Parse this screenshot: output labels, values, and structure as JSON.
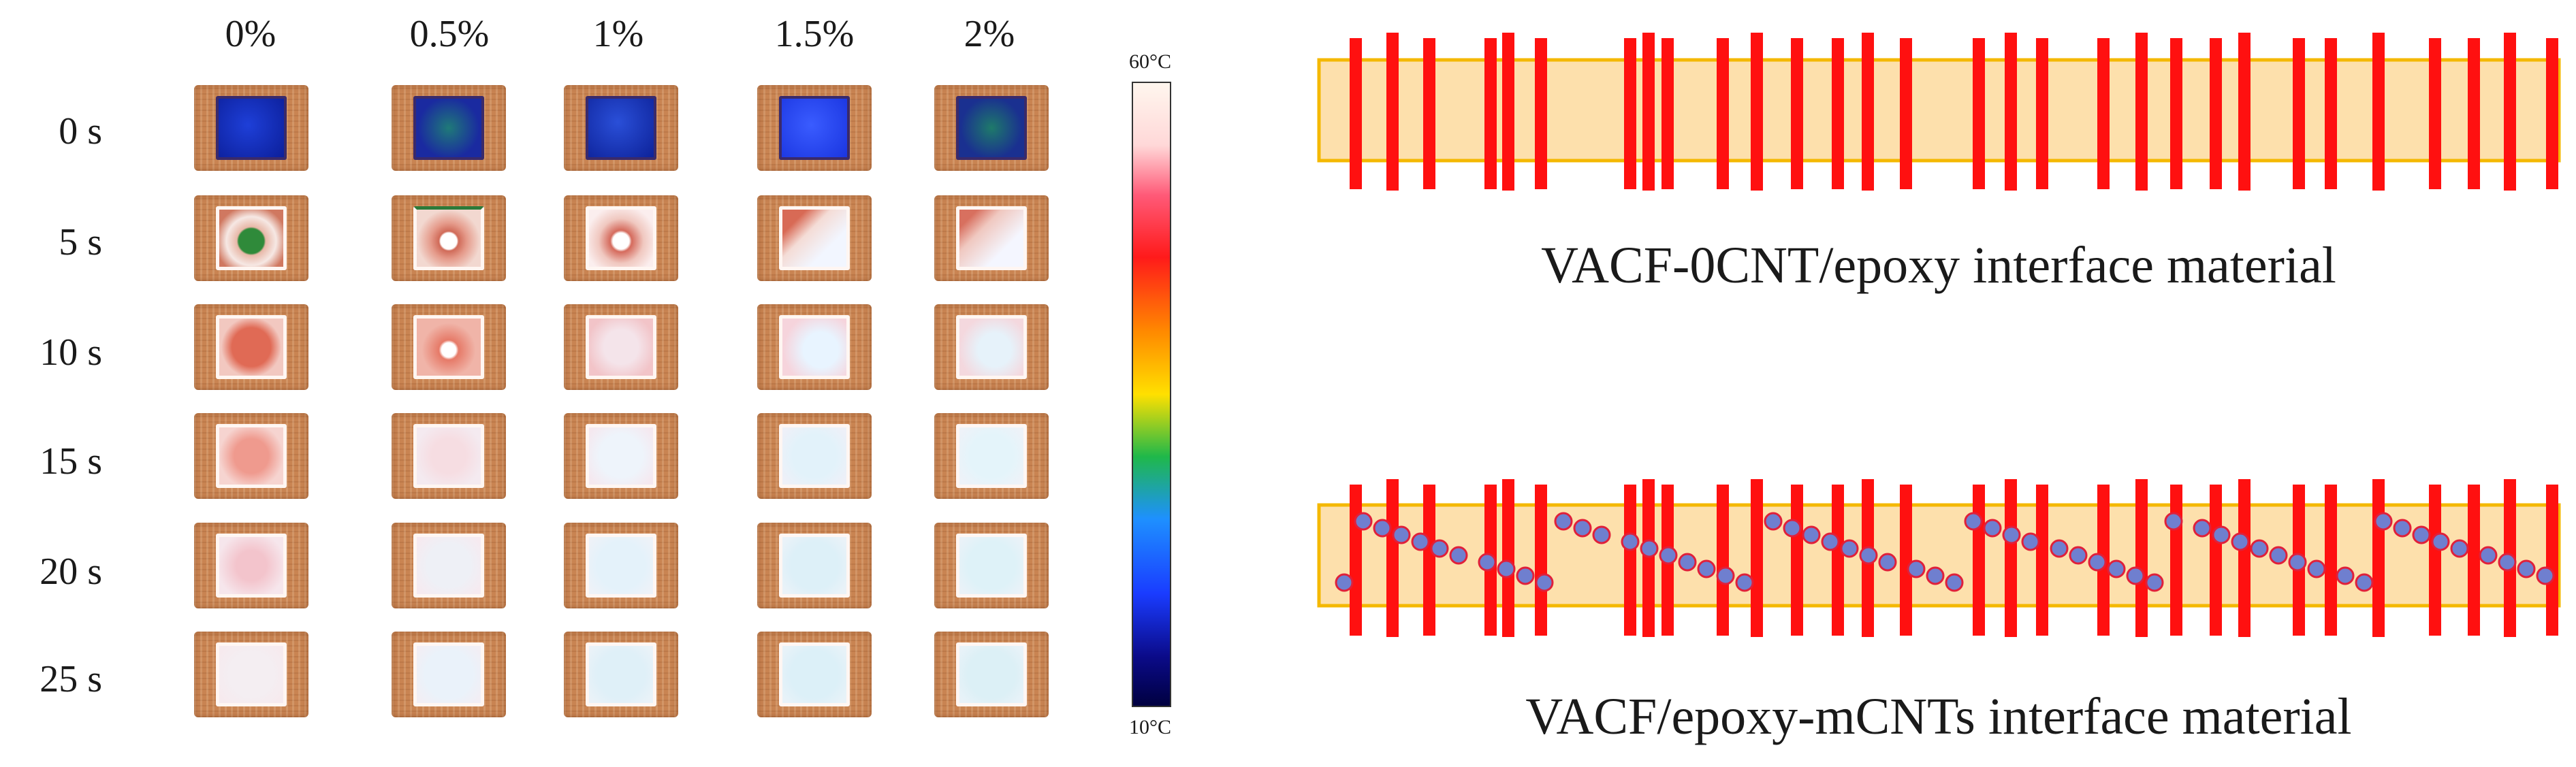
{
  "thermal_grid": {
    "columns": [
      "0%",
      "0.5%",
      "1%",
      "1.5%",
      "2%"
    ],
    "rows": [
      "0 s",
      "5 s",
      "10 s",
      "15 s",
      "20 s",
      "25 s"
    ]
  },
  "colorbar": {
    "max_label": "60°C",
    "min_label": "10°C",
    "colors": [
      "#fff6ee",
      "#ff5a78",
      "#ff1a1a",
      "#ff8a00",
      "#ffe000",
      "#1fb84a",
      "#1e90ff",
      "#0b0b8a"
    ]
  },
  "diagram_top": {
    "caption": "VACF-0CNT/epoxy interface material"
  },
  "diagram_bottom": {
    "caption": "VACF/epoxy-mCNTs interface material"
  },
  "legend_colors": {
    "band": "#fde0ac",
    "band_border": "#f4b800",
    "fiber": "#ff1010",
    "cnt_fill": "#6f7fcf",
    "cnt_edge": "#e0203a"
  }
}
